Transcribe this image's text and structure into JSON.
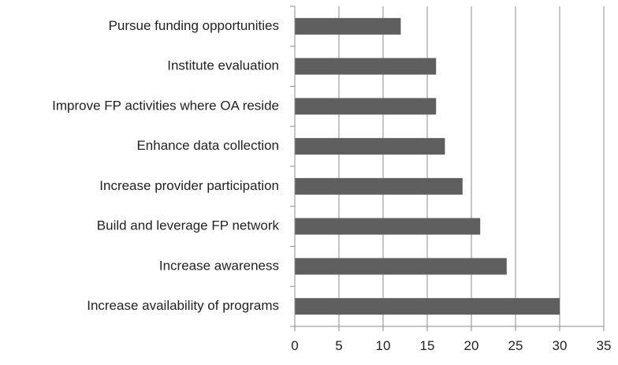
{
  "chart_data": {
    "type": "bar",
    "orientation": "horizontal",
    "categories": [
      "Pursue funding opportunities",
      "Institute evaluation",
      "Improve FP activities where OA reside",
      "Enhance data collection",
      "Increase provider participation",
      "Build and leverage FP network",
      "Increase awareness",
      "Increase availability of programs"
    ],
    "values": [
      12,
      16,
      16,
      17,
      19,
      21,
      24,
      30
    ],
    "title": "",
    "xlabel": "",
    "ylabel": "",
    "xlim": [
      0,
      35
    ],
    "xticks": [
      0,
      5,
      10,
      15,
      20,
      25,
      30,
      35
    ],
    "grid": true,
    "legend": "none",
    "bar_color": "#5f5f5f",
    "grid_color": "#8c8c8c",
    "axis_color": "#8c8c8c",
    "text_color": "#222222"
  }
}
